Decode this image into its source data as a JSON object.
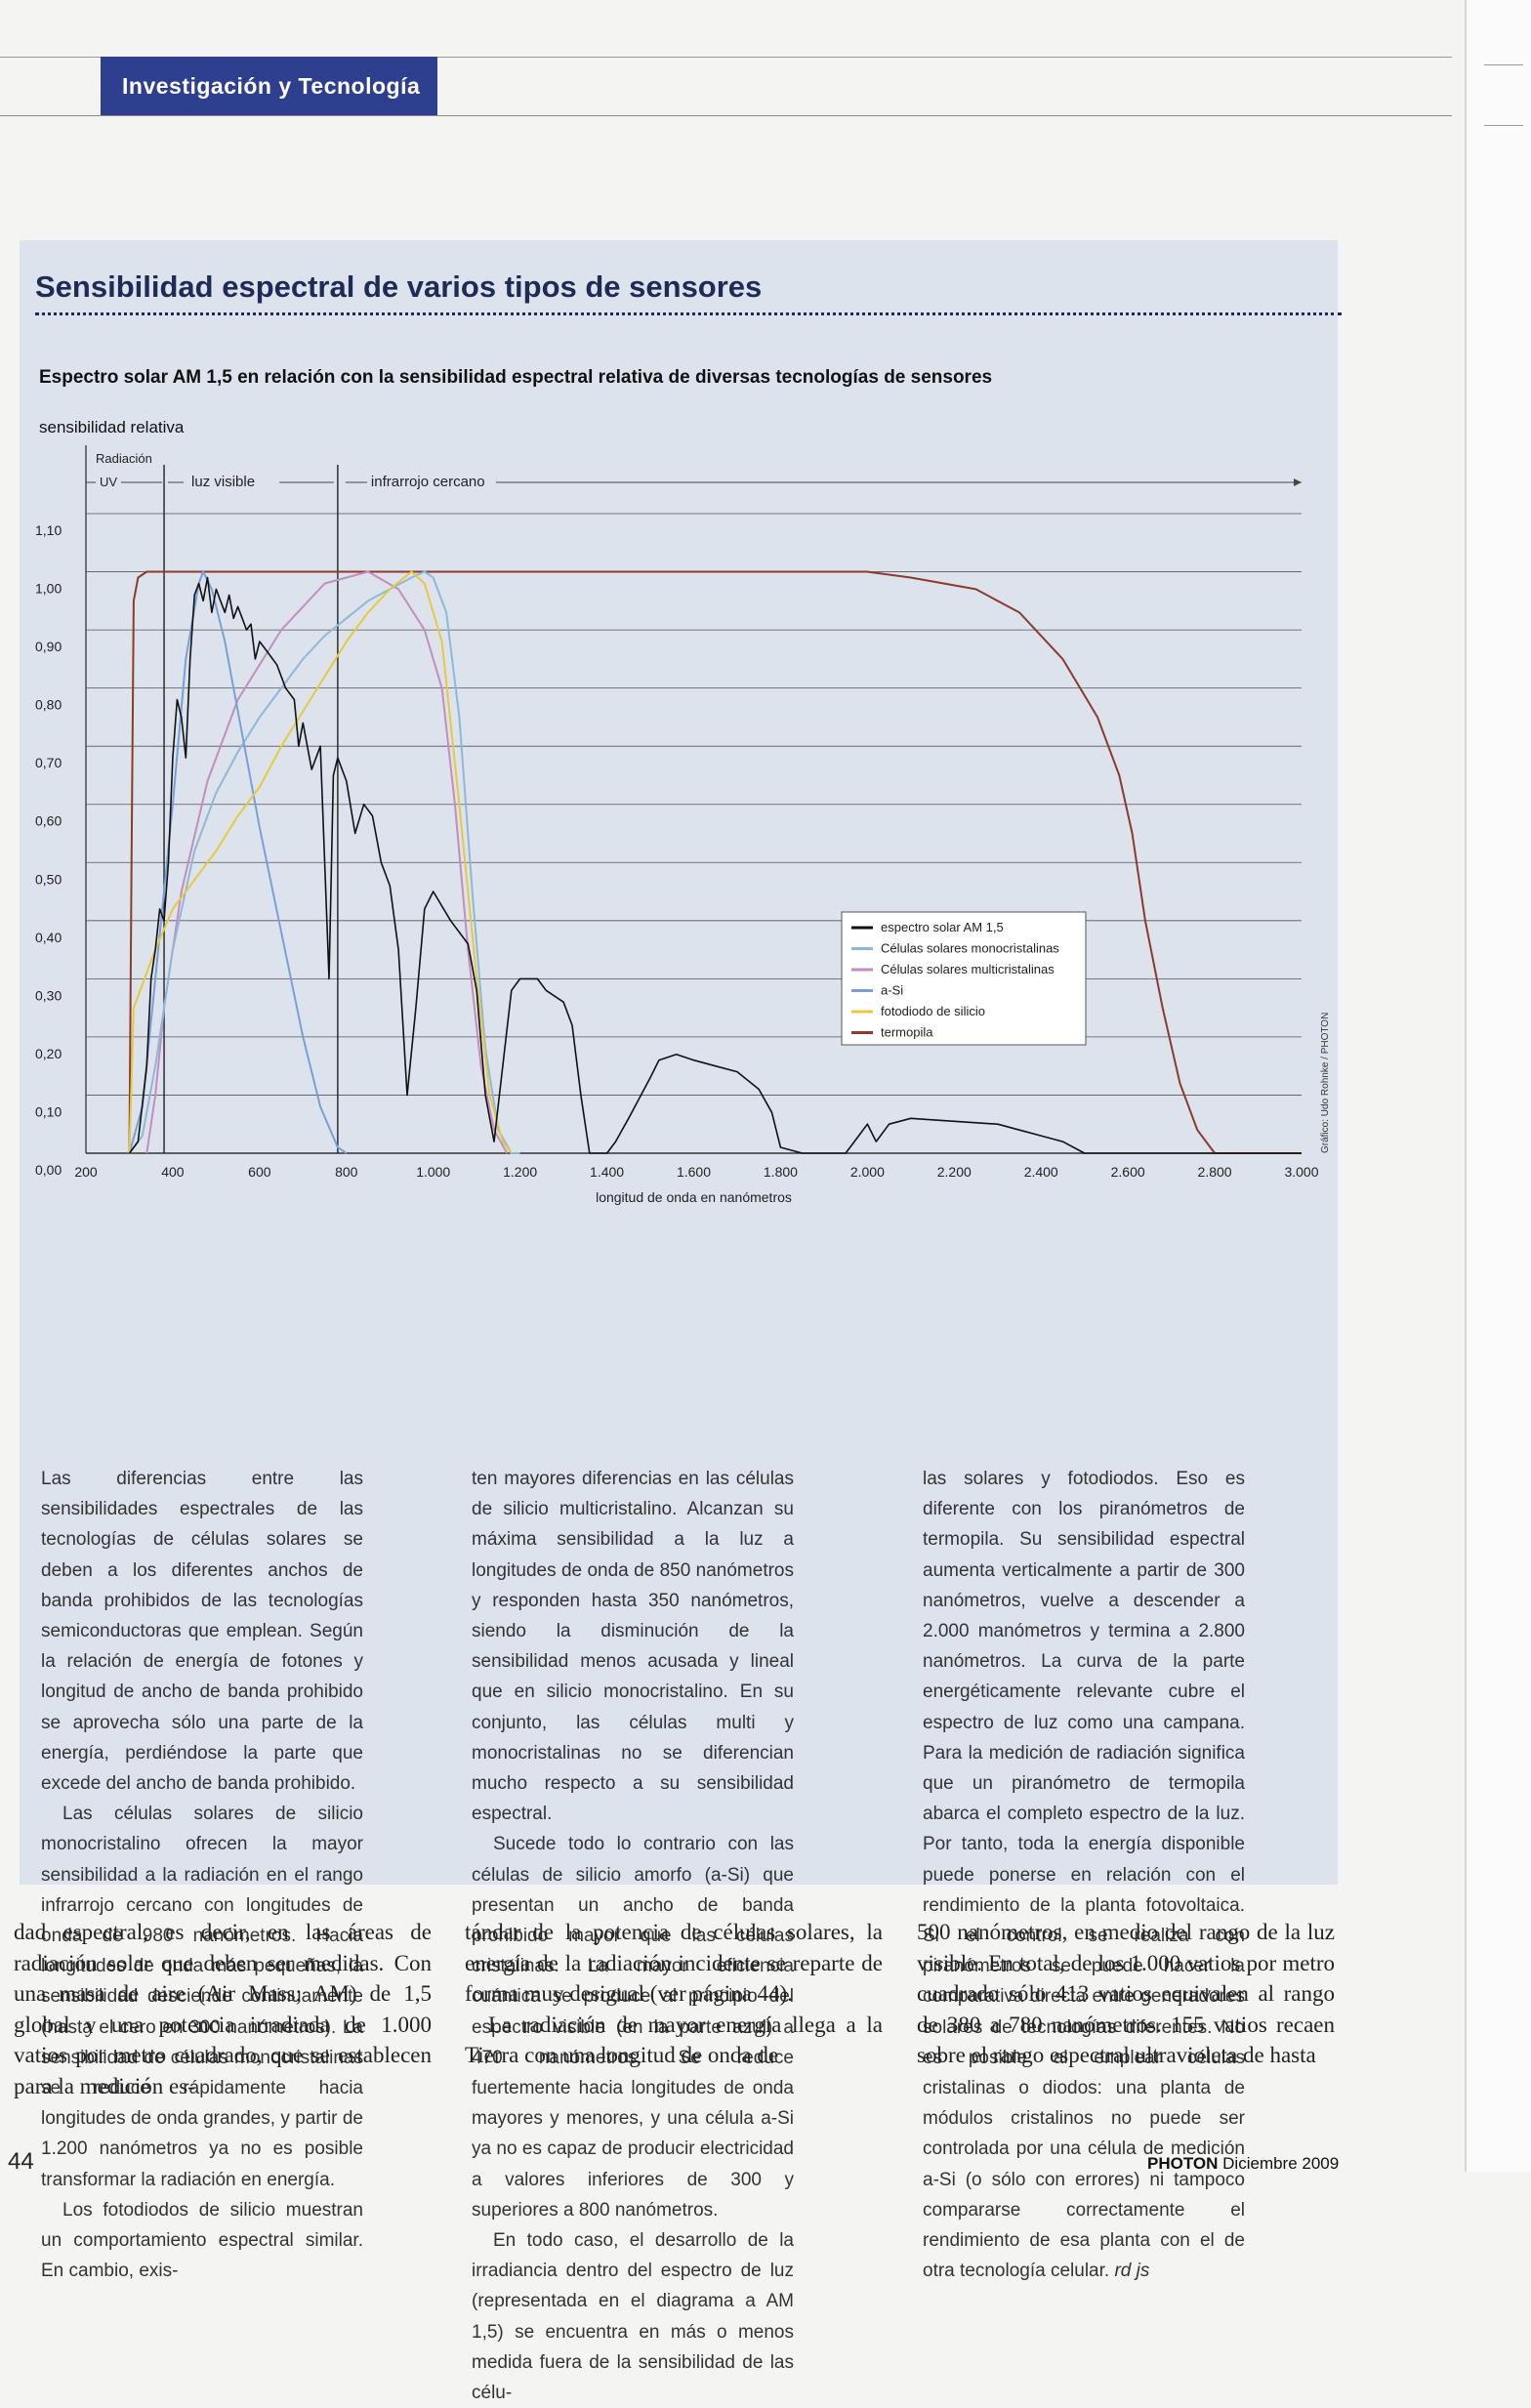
{
  "header": {
    "section": "Investigación y Tecnología"
  },
  "panel": {
    "title": "Sensibilidad espectral de varios tipos de sensores",
    "subtitle": "Espectro solar AM 1,5 en relación con la sensibilidad espectral relativa de diversas tecnologías de sensores"
  },
  "chart_data": {
    "type": "line",
    "ylabel": "sensibilidad relativa",
    "xlabel": "longitud de onda en nanómetros",
    "xlim": [
      200,
      3000
    ],
    "ylim": [
      0,
      1.1
    ],
    "x_ticks": [
      "200",
      "400",
      "600",
      "800",
      "1.000",
      "1.200",
      "1.400",
      "1.600",
      "1.800",
      "2.000",
      "2.200",
      "2.400",
      "2.600",
      "2.800",
      "3.000"
    ],
    "y_ticks": [
      "0,00",
      "0,10",
      "0,20",
      "0,30",
      "0,40",
      "0,50",
      "0,60",
      "0,70",
      "0,80",
      "0,90",
      "1,00",
      "1,10"
    ],
    "regions": [
      {
        "label": "Radiación UV",
        "from": 200,
        "to": 380
      },
      {
        "label": "luz visible",
        "from": 380,
        "to": 780
      },
      {
        "label": "infrarrojo cercano",
        "from": 780,
        "to": 3000
      }
    ],
    "credit": "Gráfico: Udo Rohnke / PHOTON",
    "legend_position": "right",
    "grid": true,
    "series": [
      {
        "name": "espectro solar AM 1,5",
        "color": "#111111",
        "points": [
          [
            300,
            0
          ],
          [
            320,
            0.02
          ],
          [
            340,
            0.15
          ],
          [
            350,
            0.3
          ],
          [
            360,
            0.35
          ],
          [
            370,
            0.42
          ],
          [
            380,
            0.4
          ],
          [
            390,
            0.5
          ],
          [
            400,
            0.68
          ],
          [
            410,
            0.78
          ],
          [
            420,
            0.75
          ],
          [
            430,
            0.68
          ],
          [
            440,
            0.85
          ],
          [
            450,
            0.96
          ],
          [
            460,
            0.98
          ],
          [
            470,
            0.95
          ],
          [
            480,
            0.99
          ],
          [
            490,
            0.93
          ],
          [
            500,
            0.97
          ],
          [
            510,
            0.95
          ],
          [
            520,
            0.93
          ],
          [
            530,
            0.96
          ],
          [
            540,
            0.92
          ],
          [
            550,
            0.94
          ],
          [
            560,
            0.92
          ],
          [
            570,
            0.9
          ],
          [
            580,
            0.91
          ],
          [
            590,
            0.85
          ],
          [
            600,
            0.88
          ],
          [
            620,
            0.86
          ],
          [
            640,
            0.84
          ],
          [
            660,
            0.8
          ],
          [
            680,
            0.78
          ],
          [
            690,
            0.7
          ],
          [
            700,
            0.74
          ],
          [
            720,
            0.66
          ],
          [
            740,
            0.7
          ],
          [
            760,
            0.3
          ],
          [
            770,
            0.65
          ],
          [
            780,
            0.68
          ],
          [
            800,
            0.64
          ],
          [
            820,
            0.55
          ],
          [
            840,
            0.6
          ],
          [
            860,
            0.58
          ],
          [
            880,
            0.5
          ],
          [
            900,
            0.46
          ],
          [
            920,
            0.35
          ],
          [
            940,
            0.1
          ],
          [
            960,
            0.25
          ],
          [
            980,
            0.42
          ],
          [
            1000,
            0.45
          ],
          [
            1040,
            0.4
          ],
          [
            1080,
            0.36
          ],
          [
            1100,
            0.28
          ],
          [
            1120,
            0.1
          ],
          [
            1140,
            0.02
          ],
          [
            1160,
            0.15
          ],
          [
            1180,
            0.28
          ],
          [
            1200,
            0.3
          ],
          [
            1240,
            0.3
          ],
          [
            1260,
            0.28
          ],
          [
            1300,
            0.26
          ],
          [
            1320,
            0.22
          ],
          [
            1340,
            0.1
          ],
          [
            1360,
            0.0
          ],
          [
            1380,
            0.0
          ],
          [
            1400,
            0.0
          ],
          [
            1420,
            0.02
          ],
          [
            1450,
            0.06
          ],
          [
            1500,
            0.13
          ],
          [
            1520,
            0.16
          ],
          [
            1560,
            0.17
          ],
          [
            1600,
            0.16
          ],
          [
            1650,
            0.15
          ],
          [
            1700,
            0.14
          ],
          [
            1750,
            0.11
          ],
          [
            1780,
            0.07
          ],
          [
            1800,
            0.01
          ],
          [
            1850,
            0.0
          ],
          [
            1950,
            0.0
          ],
          [
            1980,
            0.03
          ],
          [
            2000,
            0.05
          ],
          [
            2020,
            0.02
          ],
          [
            2050,
            0.05
          ],
          [
            2100,
            0.06
          ],
          [
            2200,
            0.055
          ],
          [
            2300,
            0.05
          ],
          [
            2350,
            0.04
          ],
          [
            2400,
            0.03
          ],
          [
            2450,
            0.02
          ],
          [
            2500,
            0.0
          ],
          [
            2800,
            0.0
          ],
          [
            2900,
            0.0
          ],
          [
            3000,
            0.0
          ]
        ]
      },
      {
        "name": "Células solares monocristalinas",
        "color": "#8fb8d8",
        "points": [
          [
            300,
            0
          ],
          [
            330,
            0.03
          ],
          [
            360,
            0.15
          ],
          [
            400,
            0.35
          ],
          [
            450,
            0.52
          ],
          [
            500,
            0.62
          ],
          [
            550,
            0.69
          ],
          [
            600,
            0.75
          ],
          [
            650,
            0.8
          ],
          [
            700,
            0.85
          ],
          [
            750,
            0.89
          ],
          [
            800,
            0.92
          ],
          [
            850,
            0.95
          ],
          [
            900,
            0.97
          ],
          [
            950,
            0.99
          ],
          [
            980,
            1.0
          ],
          [
            1000,
            0.99
          ],
          [
            1030,
            0.93
          ],
          [
            1060,
            0.75
          ],
          [
            1090,
            0.45
          ],
          [
            1120,
            0.18
          ],
          [
            1150,
            0.04
          ],
          [
            1180,
            0.0
          ],
          [
            1200,
            0.0
          ]
        ]
      },
      {
        "name": "Células solares multicristalinas",
        "color": "#c48cbf",
        "points": [
          [
            340,
            0
          ],
          [
            360,
            0.1
          ],
          [
            380,
            0.25
          ],
          [
            420,
            0.45
          ],
          [
            480,
            0.64
          ],
          [
            550,
            0.78
          ],
          [
            650,
            0.9
          ],
          [
            750,
            0.98
          ],
          [
            850,
            1.0
          ],
          [
            920,
            0.97
          ],
          [
            980,
            0.9
          ],
          [
            1020,
            0.8
          ],
          [
            1050,
            0.6
          ],
          [
            1080,
            0.35
          ],
          [
            1110,
            0.15
          ],
          [
            1140,
            0.04
          ],
          [
            1170,
            0.0
          ]
        ]
      },
      {
        "name": "a-Si",
        "color": "#7a9fd8",
        "points": [
          [
            300,
            0
          ],
          [
            330,
            0.08
          ],
          [
            360,
            0.3
          ],
          [
            400,
            0.6
          ],
          [
            430,
            0.85
          ],
          [
            460,
            0.98
          ],
          [
            470,
            1.0
          ],
          [
            490,
            0.97
          ],
          [
            520,
            0.88
          ],
          [
            560,
            0.72
          ],
          [
            600,
            0.56
          ],
          [
            650,
            0.38
          ],
          [
            700,
            0.2
          ],
          [
            740,
            0.08
          ],
          [
            780,
            0.01
          ],
          [
            800,
            0.0
          ]
        ]
      },
      {
        "name": "fotodiodo de silicio",
        "color": "#e8c93e",
        "points": [
          [
            300,
            0
          ],
          [
            310,
            0.25
          ],
          [
            320,
            0.27
          ],
          [
            360,
            0.35
          ],
          [
            400,
            0.42
          ],
          [
            450,
            0.47
          ],
          [
            500,
            0.52
          ],
          [
            550,
            0.58
          ],
          [
            600,
            0.63
          ],
          [
            650,
            0.7
          ],
          [
            700,
            0.76
          ],
          [
            750,
            0.82
          ],
          [
            800,
            0.88
          ],
          [
            850,
            0.93
          ],
          [
            900,
            0.97
          ],
          [
            950,
            1.0
          ],
          [
            980,
            0.98
          ],
          [
            1020,
            0.88
          ],
          [
            1060,
            0.6
          ],
          [
            1100,
            0.3
          ],
          [
            1130,
            0.1
          ],
          [
            1160,
            0.02
          ],
          [
            1180,
            0.0
          ]
        ]
      },
      {
        "name": "termopila",
        "color": "#8b3a2e",
        "points": [
          [
            300,
            0
          ],
          [
            305,
            0.5
          ],
          [
            310,
            0.95
          ],
          [
            320,
            0.99
          ],
          [
            340,
            1.0
          ],
          [
            800,
            1.0
          ],
          [
            1500,
            1.0
          ],
          [
            2000,
            1.0
          ],
          [
            2100,
            0.99
          ],
          [
            2250,
            0.97
          ],
          [
            2350,
            0.93
          ],
          [
            2450,
            0.85
          ],
          [
            2530,
            0.75
          ],
          [
            2580,
            0.65
          ],
          [
            2610,
            0.55
          ],
          [
            2640,
            0.4
          ],
          [
            2680,
            0.25
          ],
          [
            2720,
            0.12
          ],
          [
            2760,
            0.04
          ],
          [
            2800,
            0.0
          ],
          [
            3000,
            0.0
          ]
        ]
      }
    ]
  },
  "col1": {
    "p1": "Las diferencias entre las sensibilidades espectrales de las tecnologías de células solares se deben a los diferentes anchos de banda prohibidos de las tecnologías semiconductoras que emplean. Según la relación de energía de fotones y longitud de ancho de banda prohibido se aprovecha sólo una parte de la energía, perdiéndose la parte que excede del ancho de banda prohibido.",
    "p2": "Las células solares de silicio monocristalino ofrecen la mayor sensibilidad a la radiación en el rango infrarrojo cercano con longitudes de onda de 980 nanómetros. Hacia longitudes de onda más pequeñas, la sensibilidad desciende continuamente (hasta el cero en 300 nanómetros). La sensibilidad de células monocristalinas se reduce rápidamente hacia longitudes de onda grandes, y partir de 1.200 nanómetros ya no es posible transformar la radiación en energía.",
    "p3": "Los fotodiodos de silicio muestran un comportamiento espectral similar. En cambio, exis-"
  },
  "col2": {
    "p1": "ten mayores diferencias en las células de silicio multicristalino. Alcanzan su máxima sensibilidad a la luz a longitudes de onda de 850 nanómetros y responden hasta 350 nanómetros, siendo la disminución de la sensibilidad menos acusada y lineal que en silicio monocristalino. En su conjunto, las células multi y monocristalinas no se diferencian mucho respecto a su sensibilidad espectral.",
    "p2": "Sucede todo lo contrario con las células de silicio amorfo (a-Si) que presentan un ancho de banda prohibido mayor que las células cristalinas. La mayor eficiencia cuántica se produce al principio del espectro visible (en la parte azul) a 470 nanómetros. Se reduce fuertemente hacia longitudes de onda mayores y menores, y una célula a-Si ya no es capaz de producir electricidad a valores inferiores de 300 y superiores a 800 nanómetros.",
    "p3": "En todo caso, el desarrollo de la irradiancia dentro del espectro de luz (representada en el diagrama a AM 1,5) se encuentra en más o menos medida fuera de la sensibilidad de las célu-"
  },
  "col3": {
    "p1": "las solares y fotodiodos. Eso es diferente con los piranómetros de termopila. Su sensibilidad espectral aumenta verticalmente a partir de 300 nanómetros, vuelve a descender a 2.000 manómetros y termina a 2.800 nanómetros. La curva de la parte energéticamente relevante cubre el espectro de luz como una campana. Para la medición de radiación significa que un piranómetro de termopila abarca el completo espectro de la luz. Por tanto, toda la energía disponible puede ponerse en relación con el rendimiento de la planta fotovoltaica. Si el control se realiza con piranómetros se puede hacer la comparativa directa entre generadores solares de tecnologías diferentes. No es posible al emplear células cristalinas o diodos: una planta de módulos cristalinos no puede ser controlada por una célula de medición a-Si (o sólo con errores) ni tampoco compararse correctamente el rendimiento de esa planta con el de otra tecnología celular.",
    "sig": "rd js"
  },
  "bottom": {
    "c1": "dad espectral, es decir, en las áreas de radiación solar que deben ser medidas. Con una masa de aire (Air Mass; AM) de 1,5 global y una potencia irradiada de 1.000 vatios por metro cuadrado, que se establecen para la medición es-",
    "c2p1": "tándar de la potencia de células solares, la energía de la radiación incidente se reparte de forma muy desigual (ver página 44).",
    "c2p2": "La radiación de mayor energía llega a la Tierra con una longitud de onda de",
    "c3": "500 nanómetros, en medio del rango de la luz visible. En total, de los 1.000 vatios por metro cuadrado sólo 413 vatios equivalen al rango de 380 a 780 nanómetros. 155 vatios recaen sobre el rango espectral ultravioleta de hasta"
  },
  "footer": {
    "page": "44",
    "brand": "PHOTON",
    "date": "Diciembre 2009"
  }
}
